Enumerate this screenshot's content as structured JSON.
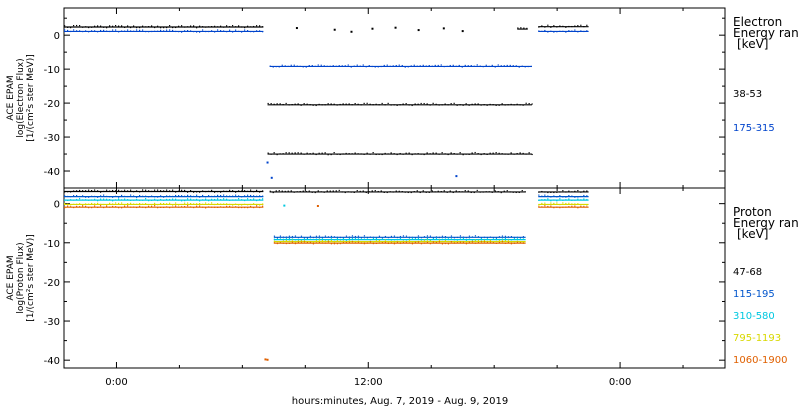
{
  "figure": {
    "xlabel": "hours:minutes, Aug.  7, 2019 - Aug.  9, 2019",
    "x_ticks": [
      {
        "label": "0:00",
        "hour": 0
      },
      {
        "label": "12:00",
        "hour": 12
      },
      {
        "label": "0:00",
        "hour": 24
      }
    ],
    "x_range_hours": [
      -2.5,
      29.0
    ],
    "gap_hours": [
      7.0,
      18.0
    ]
  },
  "chart_data": [
    {
      "type": "scatter",
      "panel": "electron",
      "ylabel": [
        "ACE EPAM",
        "log(Electron Flux)",
        "[1/(cm²s ster MeV)]"
      ],
      "ylim": [
        -45,
        8
      ],
      "y_ticks": [
        0,
        -10,
        -20,
        -30,
        -40
      ],
      "legend_title": [
        "Electron",
        "Energy ran",
        "[keV]"
      ],
      "series": [
        {
          "name": "38-53",
          "color": "#000000",
          "segments": [
            {
              "x": [
                -2.5,
                7.0
              ],
              "y": 2.4
            },
            {
              "x": [
                7.2,
                19.8
              ],
              "y": -20.5
            },
            {
              "x": [
                7.2,
                19.8
              ],
              "y": -35.0
            },
            {
              "x": [
                19.1,
                19.6
              ],
              "y": 1.8
            },
            {
              "x": [
                20.1,
                22.5
              ],
              "y": 2.5
            }
          ],
          "scattered": [
            {
              "x": 8.6,
              "y": 2.1
            },
            {
              "x": 10.4,
              "y": 1.6
            },
            {
              "x": 11.2,
              "y": 1.0
            },
            {
              "x": 12.2,
              "y": 1.9
            },
            {
              "x": 13.3,
              "y": 2.2
            },
            {
              "x": 14.4,
              "y": 1.5
            },
            {
              "x": 15.6,
              "y": 2.0
            },
            {
              "x": 16.5,
              "y": 1.2
            }
          ]
        },
        {
          "name": "175-315",
          "color": "#0044cc",
          "segments": [
            {
              "x": [
                -2.5,
                7.0
              ],
              "y": 1.1
            },
            {
              "x": [
                7.3,
                19.8
              ],
              "y": -9.2
            },
            {
              "x": [
                20.1,
                22.5
              ],
              "y": 1.1
            }
          ],
          "scattered": [
            {
              "x": 7.2,
              "y": -37.5
            },
            {
              "x": 7.4,
              "y": -42.0
            },
            {
              "x": 16.2,
              "y": -41.5
            }
          ]
        }
      ]
    },
    {
      "type": "scatter",
      "panel": "proton",
      "ylabel": [
        "ACE EPAM",
        "log(Proton Flux)",
        "[1/(cm²s ster MeV)]"
      ],
      "ylim": [
        -42,
        4
      ],
      "y_ticks": [
        0,
        -10,
        -20,
        -30,
        -40
      ],
      "legend_title": [
        "Proton",
        "Energy ran",
        "[keV]"
      ],
      "series": [
        {
          "name": "47-68",
          "color": "#000000",
          "segments": [
            {
              "x": [
                -2.5,
                7.0
              ],
              "y": 3.1
            },
            {
              "x": [
                7.3,
                19.5
              ],
              "y": 3.0
            },
            {
              "x": [
                20.1,
                22.5
              ],
              "y": 3.0
            }
          ],
          "scattered": []
        },
        {
          "name": "115-195",
          "color": "#0055cc",
          "segments": [
            {
              "x": [
                -2.5,
                7.0
              ],
              "y": 1.8
            },
            {
              "x": [
                7.5,
                19.5
              ],
              "y": -8.6
            },
            {
              "x": [
                20.1,
                22.5
              ],
              "y": 1.8
            }
          ],
          "scattered": []
        },
        {
          "name": "310-580",
          "color": "#00c8e0",
          "segments": [
            {
              "x": [
                -2.5,
                7.0
              ],
              "y": 0.9
            },
            {
              "x": [
                7.5,
                19.5
              ],
              "y": -9.2
            },
            {
              "x": [
                20.1,
                22.5
              ],
              "y": 0.9
            }
          ],
          "scattered": [
            {
              "x": 8.0,
              "y": -0.5
            }
          ]
        },
        {
          "name": "795-1193",
          "color": "#d8d800",
          "segments": [
            {
              "x": [
                -2.5,
                7.0
              ],
              "y": -0.2
            },
            {
              "x": [
                7.5,
                19.5
              ],
              "y": -9.7
            },
            {
              "x": [
                20.1,
                22.5
              ],
              "y": -0.2
            }
          ],
          "scattered": []
        },
        {
          "name": "1060-1900",
          "color": "#e06000",
          "segments": [
            {
              "x": [
                -2.5,
                7.0
              ],
              "y": -0.9
            },
            {
              "x": [
                7.5,
                19.5
              ],
              "y": -10.1
            },
            {
              "x": [
                20.1,
                22.5
              ],
              "y": -0.9
            }
          ],
          "scattered": [
            {
              "x": 7.1,
              "y": -39.8
            },
            {
              "x": 7.2,
              "y": -39.9
            },
            {
              "x": 9.6,
              "y": -0.6
            }
          ]
        }
      ]
    }
  ]
}
